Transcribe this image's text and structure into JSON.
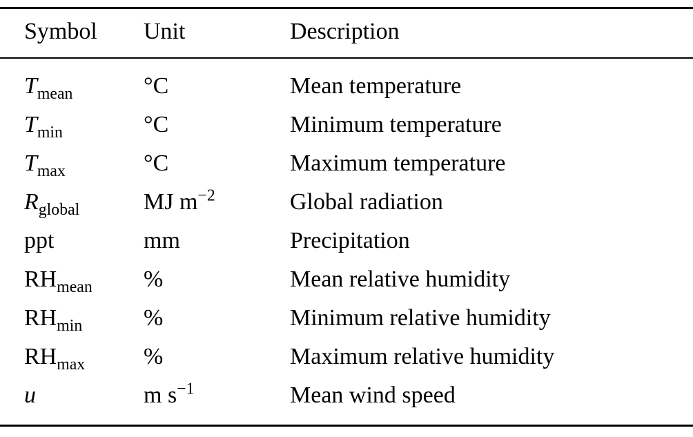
{
  "table": {
    "headers": [
      "Symbol",
      "Unit",
      "Description"
    ],
    "rows": [
      {
        "symbol_base": "T",
        "symbol_style": "italic",
        "symbol_sub": "mean",
        "unit_main": "°C",
        "unit_sup": "",
        "description": "Mean temperature"
      },
      {
        "symbol_base": "T",
        "symbol_style": "italic",
        "symbol_sub": "min",
        "unit_main": "°C",
        "unit_sup": "",
        "description": "Minimum temperature"
      },
      {
        "symbol_base": "T",
        "symbol_style": "italic",
        "symbol_sub": "max",
        "unit_main": "°C",
        "unit_sup": "",
        "description": "Maximum temperature"
      },
      {
        "symbol_base": "R",
        "symbol_style": "italic",
        "symbol_sub": "global",
        "unit_main": "MJ m",
        "unit_sup": "−2",
        "description": "Global radiation"
      },
      {
        "symbol_base": "ppt",
        "symbol_style": "upright",
        "symbol_sub": "",
        "unit_main": "mm",
        "unit_sup": "",
        "description": "Precipitation"
      },
      {
        "symbol_base": "RH",
        "symbol_style": "upright",
        "symbol_sub": "mean",
        "unit_main": "%",
        "unit_sup": "",
        "description": "Mean relative humidity"
      },
      {
        "symbol_base": "RH",
        "symbol_style": "upright",
        "symbol_sub": "min",
        "unit_main": "%",
        "unit_sup": "",
        "description": "Minimum relative humidity"
      },
      {
        "symbol_base": "RH",
        "symbol_style": "upright",
        "symbol_sub": "max",
        "unit_main": "%",
        "unit_sup": "",
        "description": "Maximum relative humidity"
      },
      {
        "symbol_base": "u",
        "symbol_style": "italic",
        "symbol_sub": "",
        "unit_main": "m s",
        "unit_sup": "−1",
        "description": "Mean wind speed"
      }
    ]
  }
}
